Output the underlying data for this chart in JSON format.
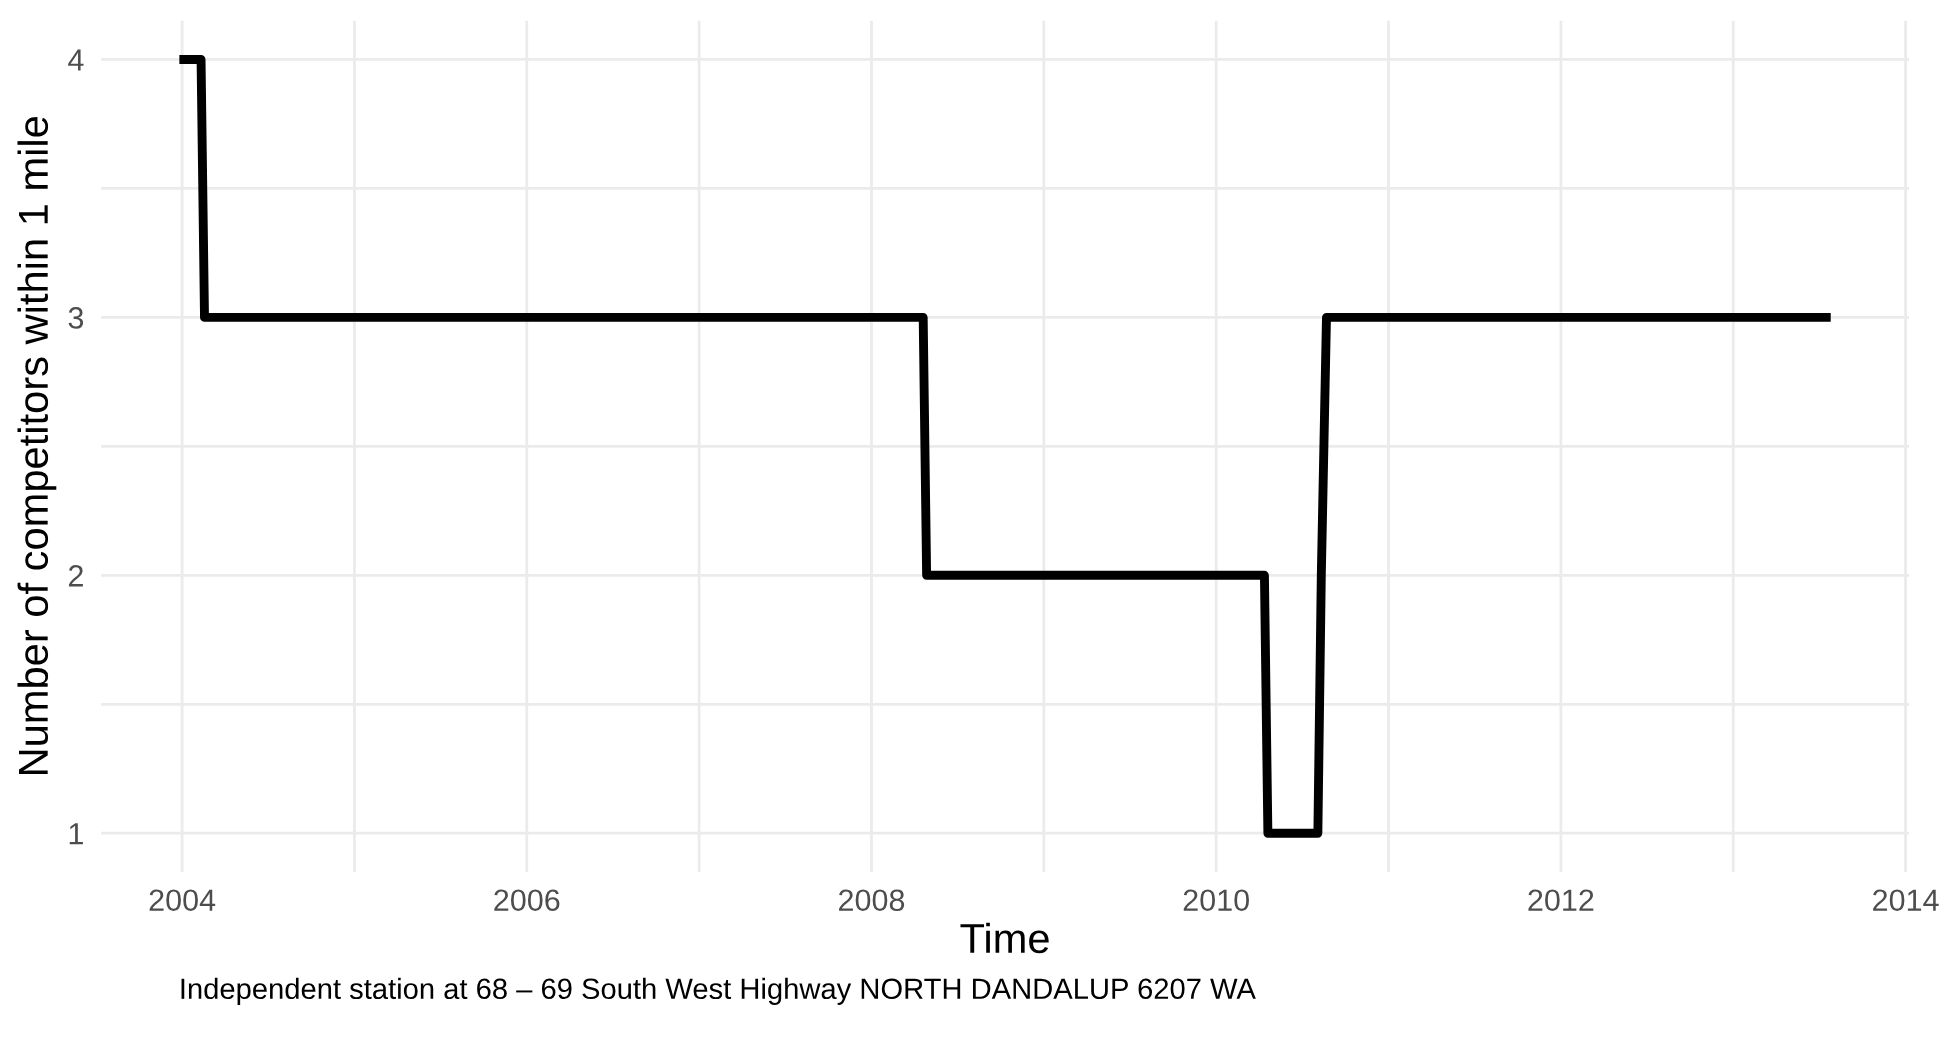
{
  "chart_data": {
    "type": "line",
    "xlabel": "Time",
    "ylabel": "Number of competitors within 1 mile",
    "x": [
      2004.01,
      2004.11,
      2004.13,
      2008.3,
      2008.32,
      2010.28,
      2010.3,
      2010.59,
      2010.61,
      2010.64,
      2013.54
    ],
    "series": [
      {
        "color": "#000000",
        "values": [
          4,
          4,
          3,
          3,
          2,
          2,
          1,
          1,
          2,
          3,
          3
        ]
      }
    ],
    "xlim": [
      2003.53,
      2014.02
    ],
    "xticks": [
      2004,
      {
        "value": 2005,
        "label": null
      },
      2006,
      {
        "value": 2007,
        "label": null
      },
      2008,
      {
        "value": 2009,
        "label": null
      },
      2010,
      {
        "value": 2011,
        "label": null
      },
      2012,
      {
        "value": 2013,
        "label": null
      },
      2014
    ],
    "ylim": [
      0.85,
      4.15
    ],
    "yticks": [
      1,
      {
        "value": 1.5,
        "label": null
      },
      2,
      {
        "value": 2.5,
        "label": null
      },
      3,
      {
        "value": 3.5,
        "label": null
      },
      4
    ],
    "grid": true,
    "marker": "none",
    "line_style": "solid",
    "annotations": [
      "Independent station at 68 – 69 South West Highway NORTH DANDALUP 6207 WA"
    ]
  }
}
